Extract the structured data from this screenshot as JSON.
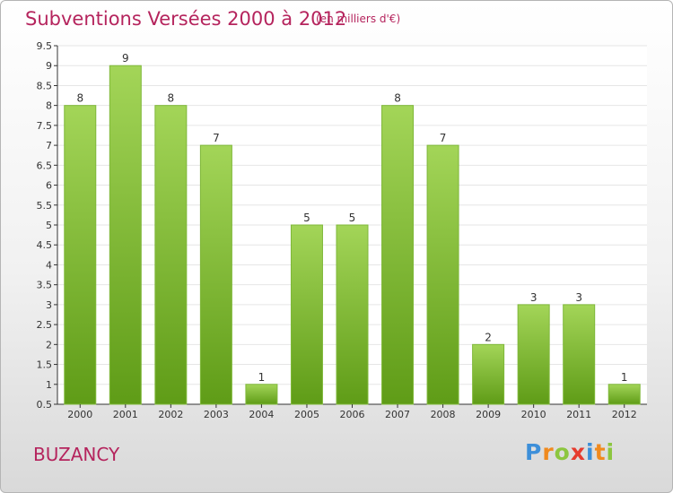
{
  "header": {
    "title": "Subventions Versées 2000 à 2012",
    "unit": "(en milliers d'€)"
  },
  "footer": {
    "location": "BUZANCY"
  },
  "logo": {
    "letters": [
      "P",
      "r",
      "o",
      "x",
      "i",
      "t",
      "i"
    ],
    "colors": [
      "#3d8fd9",
      "#f08a1e",
      "#8cc63f",
      "#e63b2e",
      "#3d8fd9",
      "#f08a1e",
      "#8cc63f"
    ]
  },
  "chart_data": {
    "type": "bar",
    "categories": [
      "2000",
      "2001",
      "2002",
      "2003",
      "2004",
      "2005",
      "2006",
      "2007",
      "2008",
      "2009",
      "2010",
      "2011",
      "2012"
    ],
    "values": [
      8,
      9,
      8,
      7,
      1,
      5,
      5,
      8,
      7,
      2,
      3,
      3,
      1
    ],
    "data_labels": [
      "8",
      "9",
      "8",
      "7",
      "1",
      "5",
      "5",
      "8",
      "7",
      "2",
      "3",
      "3",
      "1"
    ],
    "yticks": [
      "0.5",
      "1",
      "1.5",
      "2",
      "2.5",
      "3",
      "3.5",
      "4",
      "4.5",
      "5",
      "5.5",
      "6",
      "6.5",
      "7",
      "7.5",
      "8",
      "8.5",
      "9",
      "9.5"
    ],
    "ylim": [
      0.5,
      9.5
    ],
    "grid": true,
    "colors": {
      "bar_top": "#a3d558",
      "bar_bottom": "#5f9c17",
      "grid": "#e6e6e6",
      "axis": "#333333"
    }
  }
}
